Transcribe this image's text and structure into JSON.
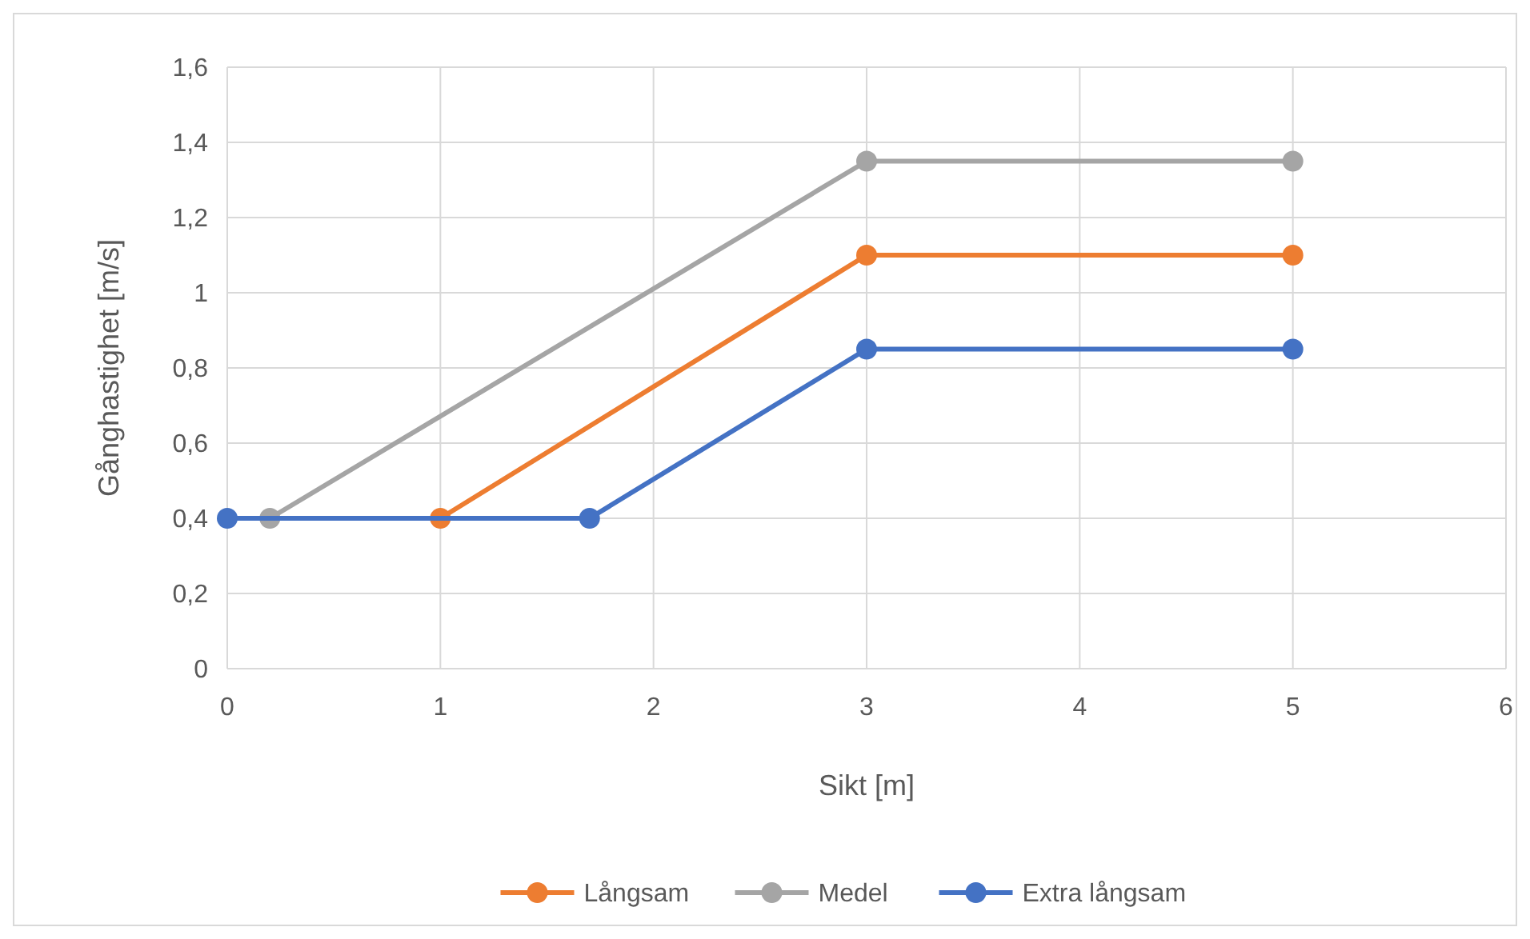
{
  "chart_data": {
    "type": "line",
    "xlabel": "Sikt [m]",
    "ylabel": "Gånghastighet [m/s]",
    "xlim": [
      0,
      6
    ],
    "xticks": [
      0,
      1,
      2,
      3,
      4,
      5,
      6
    ],
    "ylim": [
      0,
      1.6
    ],
    "yticks": [
      0,
      {
        "value": 0.2,
        "label": "0,2"
      },
      {
        "value": 0.4,
        "label": "0,4"
      },
      {
        "value": 0.6,
        "label": "0,6"
      },
      {
        "value": 0.8,
        "label": "0,8"
      },
      1,
      {
        "value": 1.2,
        "label": "1,2"
      },
      {
        "value": 1.4,
        "label": "1,4"
      },
      {
        "value": 1.6,
        "label": "1,6"
      }
    ],
    "grid": true,
    "legend": "bottom",
    "marker": "circle",
    "line_style": "solid",
    "series": [
      {
        "name": "Långsam",
        "color": "#ed7d31",
        "x": [
          1,
          3,
          5
        ],
        "values": [
          0.4,
          1.1,
          1.1
        ]
      },
      {
        "name": "Medel",
        "color": "#a5a5a5",
        "x": [
          0.2,
          3,
          5
        ],
        "values": [
          0.4,
          1.35,
          1.35
        ]
      },
      {
        "name": "Extra långsam",
        "color": "#4472c4",
        "x": [
          0,
          1.7,
          3,
          5
        ],
        "values": [
          0.4,
          0.4,
          0.85,
          0.85
        ]
      }
    ]
  }
}
